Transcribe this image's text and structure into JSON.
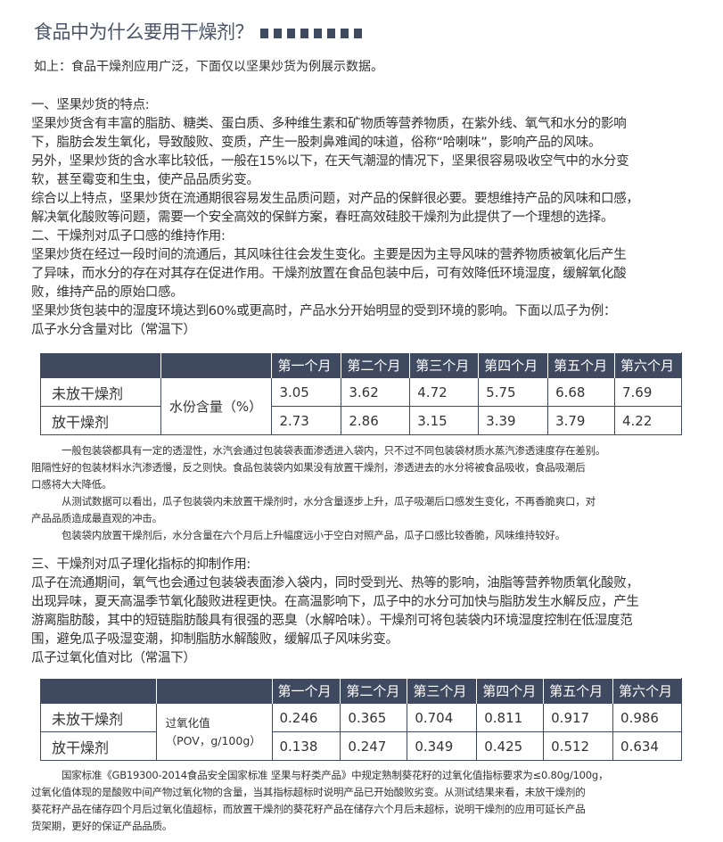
{
  "title": "食品中为什么要用干燥剂？",
  "title_squares": 8,
  "intro": "如上：食品干燥剂应用广泛，下面仅以坚果炒货为例展示数据。",
  "section1": {
    "lines": [
      "一、坚果炒货的特点:",
      "坚果炒货含有丰富的脂肪、糖类、蛋白质、多种维生素和矿物质等营养物质，在紫外线、氧气和水分的影响",
      "下，脂肪会发生氧化，导致酸败、变质，产生一股刺鼻难闻的味道，俗称“哈喇味”，影响产品的风味。",
      "另外，坚果炒货的含水率比较低，一般在15%以下，在天气潮湿的情况下，坚果很容易吸收空气中的水分变",
      "软，甚至霉变和生虫，使产品品质劣变。",
      "综合以上特点，坚果炒货在流通期很容易发生品质问题，对产品的保鲜很必要。要想维持产品的风味和口感，",
      "解决氧化酸败等问题，需要一个安全高效的保鲜方案，春旺高效硅胶干燥剂为此提供了一个理想的选择。",
      "二、干燥剂对瓜子口感的维持作用:",
      "坚果炒货在经过一段时间的流通后，其风味往往会发生变化。主要是因为主导风味的营养物质被氧化后产生",
      "了异味，而水分的存在对其存在促进作用。干燥剂放置在食品包装中后，可有效降低环境湿度，缓解氧化酸",
      "败，维持产品的原始口感。",
      "坚果炒货包装中的湿度环境达到60%或更高时，产品水分开始明显的受到环境的影响。下面以瓜子为例：",
      "瓜子水分含量对比（常温下）"
    ]
  },
  "table1": {
    "headers": [
      "",
      "",
      "第一个月",
      "第二个月",
      "第三个月",
      "第四个月",
      "第五个月",
      "第六个月"
    ],
    "metric": "水份含量（%）",
    "rows": [
      {
        "label": "未放干燥剂",
        "values": [
          "3.05",
          "3.62",
          "4.72",
          "5.75",
          "6.68",
          "7.69"
        ]
      },
      {
        "label": "放干燥剂",
        "values": [
          "2.73",
          "2.86",
          "3.15",
          "3.39",
          "3.79",
          "4.22"
        ]
      }
    ]
  },
  "notes1": [
    {
      "indent": true,
      "text": "一般包装袋都具有一定的透湿性，水汽会通过包装袋表面渗透进入袋内，只不过不同包装袋材质水蒸汽渗透速度存在差别。"
    },
    {
      "indent": false,
      "text": "阻隔性好的包装材料水汽渗透慢，反之则快。食品包装袋内如果没有放置干燥剂，渗透进去的水分将被食品吸收，食品吸潮后"
    },
    {
      "indent": false,
      "text": "口感将大大降低。"
    },
    {
      "indent": true,
      "text": "从测试数据可以看出，瓜子包装袋内未放置干燥剂时，水分含量逐步上升，瓜子吸潮后口感发生变化，不再香脆爽口，对"
    },
    {
      "indent": false,
      "text": "产品品质造成最直观的冲击。"
    },
    {
      "indent": true,
      "text": "包装袋内放置干燥剂后，水分含量在六个月后上升幅度远小于空白对照产品，瓜子口感比较香脆，风味维持较好。"
    }
  ],
  "section3": {
    "lines": [
      "三、干燥剂对瓜子理化指标的抑制作用:",
      "瓜子在流通期间，氧气也会通过包装袋表面渗入袋内，同时受到光、热等的影响，油脂等营养物质氧化酸败，",
      "出现异味，夏天高温季节氧化酸败进程更快。在高温影响下，瓜子中的水分可加快与脂肪发生水解反应，产生",
      "游离脂肪酸，其中的短链脂肪酸具有很强的恶臭（水解哈味）。干燥剂可将包装袋内环境湿度控制在低湿度范",
      "围，避免瓜子吸湿变潮，抑制脂肪水解酸败，缓解瓜子风味劣变。",
      "瓜子过氧化值对比（常温下）"
    ]
  },
  "table2": {
    "headers": [
      "",
      "",
      "第一个月",
      "第二个月",
      "第三个月",
      "第四个月",
      "第五个月",
      "第六个月"
    ],
    "metric_line1": "过氧化值",
    "metric_line2": "（POV，g/100g）",
    "rows": [
      {
        "label": "未放干燥剂",
        "values": [
          "0.246",
          "0.365",
          "0.704",
          "0.811",
          "0.917",
          "0.986"
        ]
      },
      {
        "label": "放干燥剂",
        "values": [
          "0.138",
          "0.247",
          "0.349",
          "0.425",
          "0.512",
          "0.634"
        ]
      }
    ]
  },
  "notes2": [
    {
      "indent": true,
      "text": "国家标准《GB19300-2014食品安全国家标准 坚果与籽类产品》中规定熟制葵花籽的过氧化值指标要求为≤0.80g/100g，"
    },
    {
      "indent": false,
      "text": "过氧化值体现的是酸败中间产物过氧化物的含量，当其指标超标时说明产品已开始酸败劣变。从测试结果来看，未放干燥剂的"
    },
    {
      "indent": false,
      "text": "葵花籽产品在储存四个月后过氧化值超标，而放置干燥剂的葵花籽产品在储存六个月后未超标，说明干燥剂的应用可延长产品"
    },
    {
      "indent": false,
      "text": "货架期，更好的保证产品品质。"
    }
  ],
  "colors": {
    "table_header": "#3f4a60",
    "title": "#4a5468",
    "text": "#333333"
  }
}
